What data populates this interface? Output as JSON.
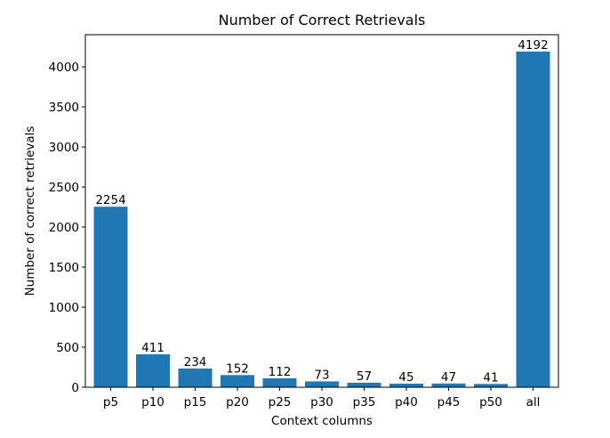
{
  "chart_data": {
    "type": "bar",
    "title": "Number of Correct Retrievals",
    "xlabel": "Context columns",
    "ylabel": "Number of correct retrievals",
    "categories": [
      "p5",
      "p10",
      "p15",
      "p20",
      "p25",
      "p30",
      "p35",
      "p40",
      "p45",
      "p50",
      "all"
    ],
    "values": [
      2254,
      411,
      234,
      152,
      112,
      73,
      57,
      45,
      47,
      41,
      4192
    ],
    "data_labels": [
      "2254",
      "411",
      "234",
      "152",
      "112",
      "73",
      "57",
      "45",
      "47",
      "41",
      "4192"
    ],
    "ylim": [
      0,
      4401.6
    ],
    "yticks": [
      0,
      500,
      1000,
      1500,
      2000,
      2500,
      3000,
      3500,
      4000
    ],
    "ytick_labels": [
      "0",
      "500",
      "1000",
      "1500",
      "2000",
      "2500",
      "3000",
      "3500",
      "4000"
    ],
    "grid": false,
    "bar_color": "#1f77b4"
  }
}
